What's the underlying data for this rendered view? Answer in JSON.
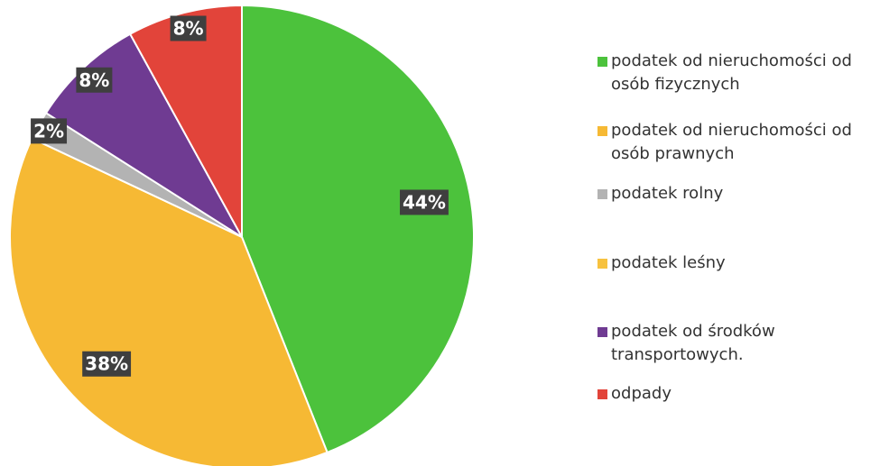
{
  "chart_data": {
    "type": "pie",
    "categories": [
      "podatek od nieruchomości od osób fizycznych",
      "podatek od nieruchomości od osób prawnych",
      "podatek rolny",
      "podatek leśny",
      "podatek od środków transportowych.",
      "odpady"
    ],
    "values": [
      44,
      38,
      2,
      0,
      8,
      8
    ],
    "value_labels": [
      "44%",
      "38%",
      "2%",
      null,
      "8%",
      "8%"
    ],
    "colors": [
      "#4cc23c",
      "#f6b934",
      "#b3b3b3",
      "#f7c23f",
      "#6f3b92",
      "#e2443a"
    ]
  }
}
